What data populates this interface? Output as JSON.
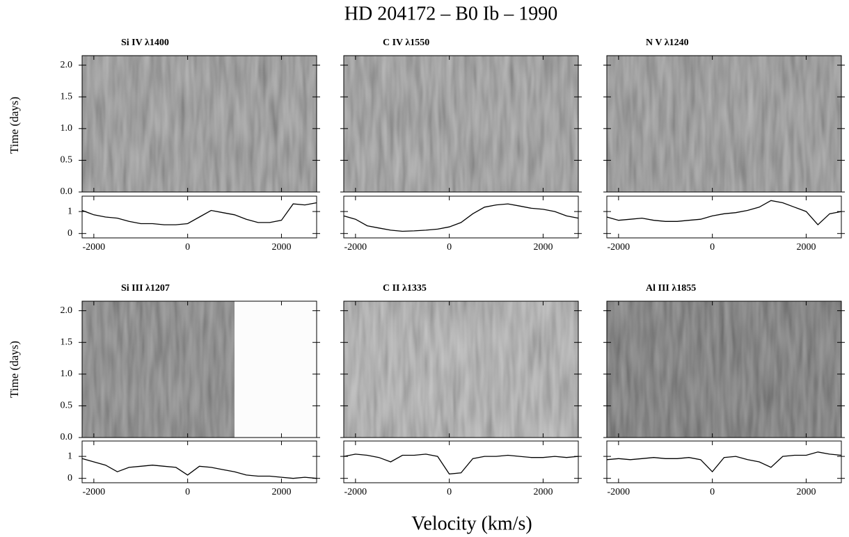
{
  "title": "HD 204172  – B0 Ib – 1990",
  "x_label": "Velocity (km/s)",
  "y_label": "Time (days)",
  "chart_data": [
    {
      "type": "line",
      "title": "Si IV λ1400",
      "color": "#000000",
      "x": [
        -2250,
        -2000,
        -1750,
        -1500,
        -1250,
        -1000,
        -750,
        -500,
        -250,
        0,
        250,
        500,
        750,
        1000,
        1250,
        1500,
        1750,
        2000,
        2250,
        2500,
        2750
      ],
      "values": [
        1.05,
        0.85,
        0.75,
        0.7,
        0.55,
        0.45,
        0.45,
        0.4,
        0.4,
        0.45,
        0.75,
        1.05,
        0.95,
        0.85,
        0.65,
        0.5,
        0.5,
        0.6,
        1.35,
        1.3,
        1.4
      ],
      "xlim": [
        -2250,
        2750
      ],
      "xticks": [
        -2000,
        0,
        2000
      ],
      "ylim": [
        -0.2,
        1.7
      ],
      "yticks": [
        0,
        1
      ],
      "image": {
        "ylim": [
          0,
          2.15
        ],
        "yticks": [
          {
            "value": 0,
            "label": "0.0"
          },
          0.5,
          {
            "value": 1,
            "label": "1.0"
          },
          1.5,
          {
            "value": 2,
            "label": "2.0"
          }
        ]
      }
    },
    {
      "type": "line",
      "title": "C IV λ1550",
      "color": "#000000",
      "x": [
        -2250,
        -2000,
        -1750,
        -1500,
        -1250,
        -1000,
        -750,
        -500,
        -250,
        0,
        250,
        500,
        750,
        1000,
        1250,
        1500,
        1750,
        2000,
        2250,
        2500,
        2750
      ],
      "values": [
        0.8,
        0.65,
        0.35,
        0.25,
        0.15,
        0.1,
        0.12,
        0.15,
        0.2,
        0.3,
        0.5,
        0.9,
        1.2,
        1.3,
        1.35,
        1.25,
        1.15,
        1.1,
        1.0,
        0.8,
        0.7
      ],
      "xlim": [
        -2250,
        2750
      ],
      "xticks": [
        -2000,
        0,
        2000
      ],
      "ylim": [
        -0.2,
        1.7
      ],
      "yticks": [
        0,
        1
      ],
      "image": {
        "ylim": [
          0,
          2.15
        ],
        "yticks": [
          {
            "value": 0,
            "label": "0.0"
          },
          0.5,
          {
            "value": 1,
            "label": "1.0"
          },
          1.5,
          {
            "value": 2,
            "label": "2.0"
          }
        ]
      }
    },
    {
      "type": "line",
      "title": "N V λ1240",
      "color": "#000000",
      "x": [
        -2250,
        -2000,
        -1750,
        -1500,
        -1250,
        -1000,
        -750,
        -500,
        -250,
        0,
        250,
        500,
        750,
        1000,
        1250,
        1500,
        1750,
        2000,
        2250,
        2500,
        2750
      ],
      "values": [
        0.75,
        0.6,
        0.65,
        0.7,
        0.6,
        0.55,
        0.55,
        0.6,
        0.65,
        0.8,
        0.9,
        0.95,
        1.05,
        1.2,
        1.5,
        1.4,
        1.2,
        1.0,
        0.4,
        0.9,
        1.0
      ],
      "xlim": [
        -2250,
        2750
      ],
      "xticks": [
        -2000,
        0,
        2000
      ],
      "ylim": [
        -0.2,
        1.7
      ],
      "yticks": [
        0,
        1
      ],
      "image": {
        "ylim": [
          0,
          2.15
        ],
        "yticks": [
          {
            "value": 0,
            "label": "0.0"
          },
          0.5,
          {
            "value": 1,
            "label": "1.0"
          },
          1.5,
          {
            "value": 2,
            "label": "2.0"
          }
        ]
      }
    },
    {
      "type": "line",
      "title": "Si III λ1207",
      "color": "#000000",
      "x": [
        -2250,
        -2000,
        -1750,
        -1500,
        -1250,
        -1000,
        -750,
        -500,
        -250,
        0,
        250,
        500,
        750,
        1000,
        1250,
        1500,
        1750,
        2000,
        2250,
        2500,
        2750
      ],
      "values": [
        0.9,
        0.75,
        0.6,
        0.3,
        0.5,
        0.55,
        0.6,
        0.55,
        0.5,
        0.15,
        0.55,
        0.5,
        0.4,
        0.3,
        0.15,
        0.1,
        0.1,
        0.05,
        0.0,
        0.05,
        0.0
      ],
      "xlim": [
        -2250,
        2750
      ],
      "xticks": [
        -2000,
        0,
        2000
      ],
      "ylim": [
        -0.2,
        1.7
      ],
      "yticks": [
        0,
        1
      ],
      "image": {
        "ylim": [
          0,
          2.15
        ],
        "yticks": [
          {
            "value": 0,
            "label": "0.0"
          },
          0.5,
          {
            "value": 1,
            "label": "1.0"
          },
          1.5,
          {
            "value": 2,
            "label": "2.0"
          }
        ]
      }
    },
    {
      "type": "line",
      "title": "C II λ1335",
      "color": "#000000",
      "x": [
        -2250,
        -2000,
        -1750,
        -1500,
        -1250,
        -1000,
        -750,
        -500,
        -250,
        0,
        250,
        500,
        750,
        1000,
        1250,
        1500,
        1750,
        2000,
        2250,
        2500,
        2750
      ],
      "values": [
        1.0,
        1.1,
        1.05,
        0.95,
        0.75,
        1.05,
        1.05,
        1.1,
        1.0,
        0.2,
        0.25,
        0.9,
        1.0,
        1.0,
        1.05,
        1.0,
        0.95,
        0.95,
        1.0,
        0.95,
        1.0
      ],
      "xlim": [
        -2250,
        2750
      ],
      "xticks": [
        -2000,
        0,
        2000
      ],
      "ylim": [
        -0.2,
        1.7
      ],
      "yticks": [
        0,
        1
      ],
      "image": {
        "ylim": [
          0,
          2.15
        ],
        "yticks": [
          {
            "value": 0,
            "label": "0.0"
          },
          0.5,
          {
            "value": 1,
            "label": "1.0"
          },
          1.5,
          {
            "value": 2,
            "label": "2.0"
          }
        ]
      }
    },
    {
      "type": "line",
      "title": "Al III λ1855",
      "color": "#000000",
      "x": [
        -2250,
        -2000,
        -1750,
        -1500,
        -1250,
        -1000,
        -750,
        -500,
        -250,
        0,
        250,
        500,
        750,
        1000,
        1250,
        1500,
        1750,
        2000,
        2250,
        2500,
        2750
      ],
      "values": [
        0.85,
        0.9,
        0.85,
        0.9,
        0.95,
        0.9,
        0.9,
        0.95,
        0.85,
        0.3,
        0.95,
        1.0,
        0.85,
        0.75,
        0.5,
        1.0,
        1.05,
        1.05,
        1.2,
        1.1,
        1.05
      ],
      "xlim": [
        -2250,
        2750
      ],
      "xticks": [
        -2000,
        0,
        2000
      ],
      "ylim": [
        -0.2,
        1.7
      ],
      "yticks": [
        0,
        1
      ],
      "image": {
        "ylim": [
          0,
          2.15
        ],
        "yticks": [
          {
            "value": 0,
            "label": "0.0"
          },
          0.5,
          {
            "value": 1,
            "label": "1.0"
          },
          1.5,
          {
            "value": 2,
            "label": "2.0"
          }
        ]
      }
    }
  ]
}
